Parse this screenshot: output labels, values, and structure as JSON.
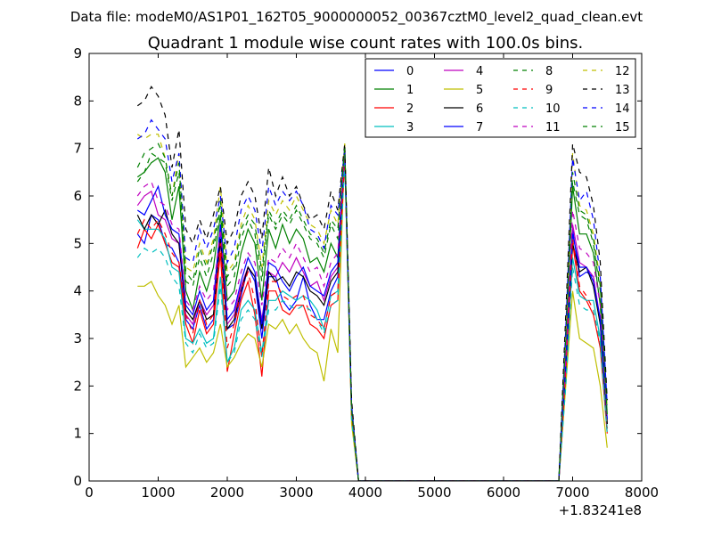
{
  "figure": {
    "suptitle": "Data file: modeM0/AS1P01_162T05_9000000052_00367cztM0_level2_quad_clean.evt"
  },
  "chart_data": {
    "type": "line",
    "title": "Quadrant 1 module wise count rates with 100.0s bins.",
    "xlabel": "",
    "ylabel": "",
    "x_offset_label": "+1.83241e8",
    "xlim": [
      0,
      8000
    ],
    "ylim": [
      0,
      9
    ],
    "xticks": [
      0,
      1000,
      2000,
      3000,
      4000,
      5000,
      6000,
      7000,
      8000
    ],
    "yticks": [
      0,
      1,
      2,
      3,
      4,
      5,
      6,
      7,
      8,
      9
    ],
    "grid": false,
    "legend": {
      "position": "top-right",
      "columns": 4
    },
    "x": [
      700,
      800,
      900,
      1000,
      1100,
      1200,
      1300,
      1400,
      1500,
      1600,
      1700,
      1800,
      1900,
      2000,
      2100,
      2200,
      2300,
      2400,
      2500,
      2600,
      2700,
      2800,
      2900,
      3000,
      3100,
      3200,
      3300,
      3400,
      3500,
      3600,
      3700,
      3800,
      3900,
      4000,
      4100,
      4200,
      4300,
      4400,
      4500,
      4600,
      4700,
      4800,
      4900,
      5000,
      5100,
      5200,
      5300,
      5400,
      5500,
      5600,
      5700,
      5800,
      5900,
      6000,
      6100,
      6200,
      6300,
      6400,
      6500,
      6600,
      6700,
      6800,
      6900,
      7000,
      7100,
      7200,
      7300,
      7400,
      7500
    ],
    "series": [
      {
        "name": "0",
        "color": "#0000ff",
        "dash": "solid",
        "values": [
          5.2,
          5.0,
          5.6,
          5.5,
          5.0,
          4.9,
          4.6,
          3.4,
          3.2,
          3.7,
          3.2,
          3.4,
          5.3,
          3.2,
          3.3,
          3.9,
          4.5,
          4.2,
          3.0,
          4.3,
          4.3,
          3.8,
          3.6,
          3.8,
          4.3,
          3.7,
          3.4,
          3.4,
          4.0,
          4.3,
          6.9,
          1.5,
          0,
          0,
          0,
          0,
          0,
          0,
          0,
          0,
          0,
          0,
          0,
          0,
          0,
          0,
          0,
          0,
          0,
          0,
          0,
          0,
          0,
          0,
          0,
          0,
          0,
          0,
          0,
          0,
          0,
          0,
          2.3,
          5.3,
          4.3,
          4.4,
          4.3,
          3.3,
          1.3
        ]
      },
      {
        "name": "1",
        "color": "#008000",
        "dash": "solid",
        "values": [
          6.4,
          6.5,
          6.7,
          6.8,
          6.5,
          5.5,
          6.2,
          4.0,
          3.6,
          4.4,
          4.0,
          4.5,
          5.6,
          3.8,
          4.0,
          4.8,
          5.3,
          5.0,
          3.8,
          5.3,
          4.9,
          5.4,
          5.0,
          5.3,
          5.1,
          4.6,
          4.7,
          4.4,
          5.0,
          4.7,
          7.0,
          1.4,
          0,
          0,
          0,
          0,
          0,
          0,
          0,
          0,
          0,
          0,
          0,
          0,
          0,
          0,
          0,
          0,
          0,
          0,
          0,
          0,
          0,
          0,
          0,
          0,
          0,
          0,
          0,
          0,
          0,
          0,
          2.8,
          6.2,
          5.2,
          5.2,
          4.8,
          3.7,
          1.2
        ]
      },
      {
        "name": "2",
        "color": "#ff0000",
        "dash": "solid",
        "values": [
          4.9,
          5.3,
          5.1,
          5.4,
          5.0,
          4.6,
          4.5,
          3.3,
          2.9,
          3.6,
          3.1,
          3.3,
          4.8,
          2.3,
          3.1,
          3.8,
          4.2,
          3.5,
          2.2,
          4.0,
          4.0,
          3.6,
          3.5,
          3.7,
          3.7,
          3.3,
          3.2,
          3.0,
          3.7,
          3.8,
          6.8,
          1.3,
          0,
          0,
          0,
          0,
          0,
          0,
          0,
          0,
          0,
          0,
          0,
          0,
          0,
          0,
          0,
          0,
          0,
          0,
          0,
          0,
          0,
          0,
          0,
          0,
          0,
          0,
          0,
          0,
          0,
          0,
          2.2,
          5.0,
          4.0,
          3.8,
          3.5,
          2.8,
          1.0
        ]
      },
      {
        "name": "3",
        "color": "#00bfbf",
        "dash": "solid",
        "values": [
          5.5,
          5.3,
          5.3,
          5.3,
          5.1,
          4.5,
          4.4,
          3.0,
          2.9,
          3.2,
          2.9,
          3.0,
          4.3,
          2.5,
          2.8,
          3.6,
          3.8,
          3.6,
          2.7,
          3.8,
          3.8,
          4.0,
          3.9,
          3.8,
          3.9,
          3.8,
          3.6,
          3.2,
          3.9,
          4.0,
          6.8,
          1.4,
          0,
          0,
          0,
          0,
          0,
          0,
          0,
          0,
          0,
          0,
          0,
          0,
          0,
          0,
          0,
          0,
          0,
          0,
          0,
          0,
          0,
          0,
          0,
          0,
          0,
          0,
          0,
          0,
          0,
          0,
          2.1,
          4.7,
          3.9,
          3.8,
          3.8,
          3.0,
          1.1
        ]
      },
      {
        "name": "4",
        "color": "#bf00bf",
        "dash": "solid",
        "values": [
          5.8,
          6.0,
          6.1,
          5.6,
          5.5,
          5.1,
          5.0,
          3.5,
          3.3,
          3.8,
          3.5,
          3.7,
          5.0,
          3.3,
          3.5,
          4.1,
          4.5,
          4.3,
          3.4,
          4.4,
          4.3,
          4.6,
          4.4,
          4.7,
          4.4,
          4.1,
          4.2,
          3.8,
          4.3,
          4.5,
          6.9,
          1.4,
          0,
          0,
          0,
          0,
          0,
          0,
          0,
          0,
          0,
          0,
          0,
          0,
          0,
          0,
          0,
          0,
          0,
          0,
          0,
          0,
          0,
          0,
          0,
          0,
          0,
          0,
          0,
          0,
          0,
          0,
          2.4,
          5.4,
          4.6,
          4.5,
          4.3,
          3.4,
          1.2
        ]
      },
      {
        "name": "5",
        "color": "#bfbf00",
        "dash": "solid",
        "values": [
          4.1,
          4.1,
          4.2,
          3.9,
          3.7,
          3.3,
          3.7,
          2.4,
          2.6,
          2.8,
          2.5,
          2.7,
          3.3,
          2.4,
          2.6,
          2.9,
          3.1,
          3.0,
          2.4,
          3.3,
          3.2,
          3.4,
          3.1,
          3.3,
          3.0,
          2.8,
          2.7,
          2.1,
          3.2,
          2.7,
          7.1,
          1.2,
          0,
          0,
          0,
          0,
          0,
          0,
          0,
          0,
          0,
          0,
          0,
          0,
          0,
          0,
          0,
          0,
          0,
          0,
          0,
          0,
          0,
          0,
          0,
          0,
          0,
          0,
          0,
          0,
          0,
          0,
          2.0,
          4.0,
          3.0,
          2.9,
          2.8,
          2.0,
          0.7
        ]
      },
      {
        "name": "6",
        "color": "#000000",
        "dash": "solid",
        "values": [
          5.6,
          5.3,
          5.6,
          5.4,
          5.7,
          5.2,
          5.0,
          3.6,
          3.4,
          3.8,
          3.4,
          3.5,
          5.1,
          3.2,
          3.4,
          4.0,
          4.5,
          4.3,
          3.2,
          4.4,
          4.2,
          4.3,
          4.1,
          4.4,
          4.3,
          4.0,
          3.9,
          3.7,
          4.2,
          4.4,
          6.9,
          1.5,
          0,
          0,
          0,
          0,
          0,
          0,
          0,
          0,
          0,
          0,
          0,
          0,
          0,
          0,
          0,
          0,
          0,
          0,
          0,
          0,
          0,
          0,
          0,
          0,
          0,
          0,
          0,
          0,
          0,
          0,
          2.4,
          5.0,
          4.4,
          4.5,
          4.1,
          3.3,
          1.2
        ]
      },
      {
        "name": "7",
        "color": "#0000ff",
        "dash": "solid",
        "values": [
          5.7,
          5.6,
          5.9,
          6.2,
          5.6,
          5.3,
          5.2,
          3.7,
          3.5,
          4.0,
          3.6,
          3.8,
          5.4,
          3.4,
          3.6,
          4.2,
          4.7,
          4.4,
          3.3,
          4.6,
          4.5,
          4.2,
          4.0,
          4.3,
          4.5,
          4.1,
          4.0,
          3.9,
          4.4,
          4.6,
          7.0,
          1.5,
          0,
          0,
          0,
          0,
          0,
          0,
          0,
          0,
          0,
          0,
          0,
          0,
          0,
          0,
          0,
          0,
          0,
          0,
          0,
          0,
          0,
          0,
          0,
          0,
          0,
          0,
          0,
          0,
          0,
          0,
          2.5,
          5.2,
          4.5,
          4.5,
          4.2,
          3.4,
          1.3
        ]
      },
      {
        "name": "8",
        "color": "#008000",
        "dash": "dashed",
        "values": [
          6.3,
          6.5,
          6.9,
          6.8,
          6.7,
          5.9,
          6.5,
          4.2,
          4.1,
          4.7,
          4.3,
          4.8,
          5.8,
          4.1,
          4.3,
          5.1,
          5.5,
          5.2,
          4.2,
          5.6,
          5.3,
          5.6,
          5.4,
          5.7,
          5.4,
          5.1,
          5.0,
          4.7,
          5.4,
          5.1,
          7.0,
          1.5,
          0,
          0,
          0,
          0,
          0,
          0,
          0,
          0,
          0,
          0,
          0,
          0,
          0,
          0,
          0,
          0,
          0,
          0,
          0,
          0,
          0,
          0,
          0,
          0,
          0,
          0,
          0,
          0,
          0,
          0,
          2.9,
          6.3,
          5.6,
          5.5,
          5.0,
          4.0,
          1.4
        ]
      },
      {
        "name": "9",
        "color": "#ff0000",
        "dash": "dashed",
        "values": [
          5.2,
          5.5,
          5.3,
          5.5,
          5.2,
          4.8,
          4.6,
          3.5,
          3.1,
          3.8,
          3.3,
          3.5,
          5.0,
          2.8,
          3.3,
          4.0,
          4.4,
          3.8,
          2.6,
          4.2,
          4.2,
          3.9,
          3.8,
          3.9,
          3.9,
          3.5,
          3.4,
          3.2,
          3.9,
          4.0,
          6.8,
          1.4,
          0,
          0,
          0,
          0,
          0,
          0,
          0,
          0,
          0,
          0,
          0,
          0,
          0,
          0,
          0,
          0,
          0,
          0,
          0,
          0,
          0,
          0,
          0,
          0,
          0,
          0,
          0,
          0,
          0,
          0,
          2.3,
          5.1,
          4.1,
          3.9,
          3.6,
          2.9,
          1.1
        ]
      },
      {
        "name": "10",
        "color": "#00bfbf",
        "dash": "dashed",
        "values": [
          4.7,
          4.9,
          4.8,
          4.9,
          4.7,
          4.3,
          4.1,
          2.9,
          2.7,
          3.1,
          2.8,
          2.9,
          4.1,
          2.5,
          2.7,
          3.4,
          3.6,
          3.4,
          2.6,
          3.6,
          3.6,
          3.8,
          3.7,
          3.6,
          3.7,
          3.6,
          3.4,
          3.1,
          3.7,
          3.8,
          6.7,
          1.3,
          0,
          0,
          0,
          0,
          0,
          0,
          0,
          0,
          0,
          0,
          0,
          0,
          0,
          0,
          0,
          0,
          0,
          0,
          0,
          0,
          0,
          0,
          0,
          0,
          0,
          0,
          0,
          0,
          0,
          0,
          2.0,
          4.5,
          3.7,
          3.6,
          3.6,
          2.9,
          1.0
        ]
      },
      {
        "name": "11",
        "color": "#bf00bf",
        "dash": "dashed",
        "values": [
          6.0,
          6.2,
          6.3,
          5.9,
          5.8,
          5.4,
          5.3,
          3.8,
          3.6,
          4.1,
          3.8,
          4.0,
          5.3,
          3.6,
          3.8,
          4.4,
          4.8,
          4.6,
          3.7,
          4.7,
          4.6,
          4.9,
          4.7,
          5.0,
          4.7,
          4.4,
          4.5,
          4.1,
          4.6,
          4.8,
          7.0,
          1.5,
          0,
          0,
          0,
          0,
          0,
          0,
          0,
          0,
          0,
          0,
          0,
          0,
          0,
          0,
          0,
          0,
          0,
          0,
          0,
          0,
          0,
          0,
          0,
          0,
          0,
          0,
          0,
          0,
          0,
          0,
          2.6,
          5.7,
          4.9,
          4.8,
          4.6,
          3.7,
          1.3
        ]
      },
      {
        "name": "12",
        "color": "#bfbf00",
        "dash": "dashed",
        "values": [
          7.3,
          7.2,
          7.3,
          7.3,
          6.8,
          6.0,
          6.9,
          4.5,
          4.4,
          5.0,
          4.6,
          5.1,
          6.2,
          4.4,
          4.6,
          5.4,
          5.8,
          5.5,
          4.5,
          5.9,
          5.6,
          5.9,
          5.7,
          6.0,
          5.7,
          5.4,
          5.3,
          5.0,
          5.7,
          5.4,
          7.1,
          1.6,
          0,
          0,
          0,
          0,
          0,
          0,
          0,
          0,
          0,
          0,
          0,
          0,
          0,
          0,
          0,
          0,
          0,
          0,
          0,
          0,
          0,
          0,
          0,
          0,
          0,
          0,
          0,
          0,
          0,
          0,
          3.1,
          6.9,
          5.8,
          5.7,
          5.2,
          4.2,
          1.5
        ]
      },
      {
        "name": "13",
        "color": "#000000",
        "dash": "dashed",
        "values": [
          7.9,
          8.0,
          8.3,
          8.1,
          7.7,
          6.6,
          7.4,
          5.3,
          5.0,
          5.5,
          5.1,
          5.6,
          6.2,
          5.0,
          5.3,
          6.0,
          6.3,
          6.0,
          5.1,
          6.6,
          6.0,
          6.4,
          6.0,
          6.2,
          5.8,
          5.5,
          5.6,
          5.3,
          6.1,
          5.7,
          7.1,
          1.7,
          0,
          0,
          0,
          0,
          0,
          0,
          0,
          0,
          0,
          0,
          0,
          0,
          0,
          0,
          0,
          0,
          0,
          0,
          0,
          0,
          0,
          0,
          0,
          0,
          0,
          0,
          0,
          0,
          0,
          0,
          3.5,
          7.1,
          6.5,
          6.4,
          5.8,
          4.6,
          1.7
        ]
      },
      {
        "name": "14",
        "color": "#0000ff",
        "dash": "dashed",
        "values": [
          7.2,
          7.3,
          7.6,
          7.4,
          7.2,
          6.3,
          6.9,
          4.7,
          4.6,
          5.3,
          4.9,
          5.3,
          6.0,
          4.6,
          4.9,
          5.7,
          6.0,
          5.7,
          4.8,
          6.2,
          5.8,
          6.1,
          5.9,
          6.1,
          5.8,
          5.3,
          5.2,
          4.9,
          5.8,
          5.6,
          7.0,
          1.6,
          0,
          0,
          0,
          0,
          0,
          0,
          0,
          0,
          0,
          0,
          0,
          0,
          0,
          0,
          0,
          0,
          0,
          0,
          0,
          0,
          0,
          0,
          0,
          0,
          0,
          0,
          0,
          0,
          0,
          0,
          3.2,
          6.8,
          5.9,
          6.1,
          5.5,
          4.3,
          1.6
        ]
      },
      {
        "name": "15",
        "color": "#008000",
        "dash": "dashed",
        "values": [
          6.6,
          6.9,
          7.0,
          7.1,
          6.8,
          6.0,
          6.7,
          4.4,
          4.2,
          4.9,
          4.5,
          5.0,
          5.9,
          4.3,
          4.5,
          5.3,
          5.6,
          5.4,
          4.4,
          5.7,
          5.4,
          5.7,
          5.5,
          5.8,
          5.5,
          5.2,
          5.1,
          4.8,
          5.5,
          5.3,
          7.0,
          1.5,
          0,
          0,
          0,
          0,
          0,
          0,
          0,
          0,
          0,
          0,
          0,
          0,
          0,
          0,
          0,
          0,
          0,
          0,
          0,
          0,
          0,
          0,
          0,
          0,
          0,
          0,
          0,
          0,
          0,
          0,
          3.0,
          6.5,
          5.7,
          5.6,
          5.1,
          4.1,
          1.4
        ]
      }
    ]
  }
}
